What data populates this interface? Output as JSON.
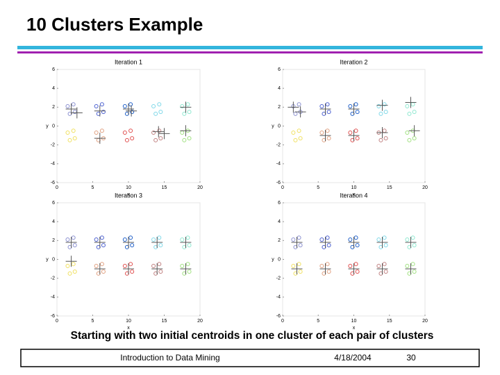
{
  "slide": {
    "title": "10 Clusters Example",
    "caption": "Starting with two initial centroids in one cluster of each pair of clusters",
    "footer": {
      "course": "Introduction to Data Mining",
      "date": "4/18/2004",
      "page": "30"
    }
  },
  "chart_data": [
    {
      "type": "scatter",
      "title": "Iteration 1",
      "x_label": "x",
      "y_label": "y",
      "xlim": [
        0,
        20
      ],
      "ylim": [
        -6,
        6
      ],
      "xticks": [
        0,
        5,
        10,
        15,
        20
      ],
      "yticks": [
        6,
        4,
        2,
        0,
        -2,
        -4,
        -6
      ],
      "series": [
        {
          "color": "#8a8fd0",
          "x": [
            1.5,
            2.3,
            2.5,
            1.8
          ],
          "values": [
            2.1,
            2.3,
            1.5,
            1.3
          ]
        },
        {
          "color": "#4a5fd0",
          "x": [
            5.5,
            6.3,
            6.5,
            5.8
          ],
          "values": [
            2.1,
            2.3,
            1.5,
            1.3
          ]
        },
        {
          "color": "#1f5fc8",
          "x": [
            9.5,
            10.3,
            10.5,
            9.8
          ],
          "values": [
            2.1,
            2.3,
            1.5,
            1.3
          ]
        },
        {
          "color": "#7fd8e8",
          "x": [
            13.5,
            14.3,
            14.5,
            13.8
          ],
          "values": [
            2.1,
            2.3,
            1.5,
            1.3
          ]
        },
        {
          "color": "#8ee8d0",
          "x": [
            17.5,
            18.3,
            18.5,
            17.8
          ],
          "values": [
            2.1,
            2.3,
            1.5,
            1.3
          ]
        },
        {
          "color": "#f0e060",
          "x": [
            1.5,
            2.3,
            2.5,
            1.8
          ],
          "values": [
            -0.7,
            -0.5,
            -1.3,
            -1.5
          ]
        },
        {
          "color": "#e0a080",
          "x": [
            5.5,
            6.3,
            6.5,
            5.8
          ],
          "values": [
            -0.7,
            -0.5,
            -1.3,
            -1.5
          ]
        },
        {
          "color": "#e05050",
          "x": [
            9.5,
            10.3,
            10.5,
            9.8
          ],
          "values": [
            -0.7,
            -0.5,
            -1.3,
            -1.5
          ]
        },
        {
          "color": "#c08080",
          "x": [
            13.5,
            14.3,
            14.5,
            13.8
          ],
          "values": [
            -0.7,
            -0.5,
            -1.3,
            -1.5
          ]
        },
        {
          "color": "#a0e080",
          "x": [
            17.5,
            18.3,
            18.5,
            17.8
          ],
          "values": [
            -0.7,
            -0.5,
            -1.3,
            -1.5
          ]
        },
        {
          "color": "#555555",
          "marker": "plus",
          "x": [
            2,
            2.8,
            6,
            6,
            10,
            10.4,
            14.2,
            15,
            18,
            18
          ],
          "values": [
            1.8,
            1.4,
            1.6,
            -1.3,
            1.8,
            1.6,
            -0.6,
            -0.8,
            2,
            -0.5
          ]
        }
      ]
    },
    {
      "type": "scatter",
      "title": "Iteration 2",
      "x_label": "x",
      "y_label": "y",
      "xlim": [
        0,
        20
      ],
      "ylim": [
        -6,
        6
      ],
      "xticks": [
        0,
        5,
        10,
        15,
        20
      ],
      "yticks": [
        6,
        4,
        2,
        0,
        -2,
        -4,
        -6
      ],
      "series": [
        {
          "color": "#8a8fd0",
          "x": [
            1.5,
            2.3,
            2.5,
            1.8
          ],
          "values": [
            2.1,
            2.3,
            1.5,
            1.3
          ]
        },
        {
          "color": "#4a5fd0",
          "x": [
            5.5,
            6.3,
            6.5,
            5.8
          ],
          "values": [
            2.1,
            2.3,
            1.5,
            1.3
          ]
        },
        {
          "color": "#1f5fc8",
          "x": [
            9.5,
            10.3,
            10.5,
            9.8
          ],
          "values": [
            2.1,
            2.3,
            1.5,
            1.3
          ]
        },
        {
          "color": "#7fd8e8",
          "x": [
            13.5,
            14.3,
            14.5,
            13.8
          ],
          "values": [
            2.1,
            2.3,
            1.5,
            1.3
          ]
        },
        {
          "color": "#8ee8d0",
          "x": [
            17.5,
            18.3,
            18.5,
            17.8
          ],
          "values": [
            2.1,
            2.3,
            1.5,
            1.3
          ]
        },
        {
          "color": "#f0e060",
          "x": [
            1.5,
            2.3,
            2.5,
            1.8
          ],
          "values": [
            -0.7,
            -0.5,
            -1.3,
            -1.5
          ]
        },
        {
          "color": "#e0a080",
          "x": [
            5.5,
            6.3,
            6.5,
            5.8
          ],
          "values": [
            -0.7,
            -0.5,
            -1.3,
            -1.5
          ]
        },
        {
          "color": "#e05050",
          "x": [
            9.5,
            10.3,
            10.5,
            9.8
          ],
          "values": [
            -0.7,
            -0.5,
            -1.3,
            -1.5
          ]
        },
        {
          "color": "#c08080",
          "x": [
            13.5,
            14.3,
            14.5,
            13.8
          ],
          "values": [
            -0.7,
            -0.5,
            -1.3,
            -1.5
          ]
        },
        {
          "color": "#a0e080",
          "x": [
            17.5,
            18.3,
            18.5,
            17.8
          ],
          "values": [
            -0.7,
            -0.5,
            -1.3,
            -1.5
          ]
        },
        {
          "color": "#555555",
          "marker": "plus",
          "x": [
            1.5,
            2.5,
            6,
            6,
            10,
            10,
            14,
            14,
            18,
            18.5
          ],
          "values": [
            2,
            1.5,
            1.8,
            -1,
            1.8,
            -1,
            2.2,
            -0.7,
            2.5,
            -0.5
          ]
        }
      ]
    },
    {
      "type": "scatter",
      "title": "Iteration 3",
      "x_label": "x",
      "y_label": "y",
      "xlim": [
        0,
        20
      ],
      "ylim": [
        -6,
        6
      ],
      "xticks": [
        0,
        5,
        10,
        15,
        20
      ],
      "yticks": [
        6,
        4,
        2,
        0,
        -2,
        -4,
        -6
      ],
      "series": [
        {
          "color": "#8a8fd0",
          "x": [
            1.5,
            2.3,
            2.5,
            1.8
          ],
          "values": [
            2.1,
            2.3,
            1.5,
            1.3
          ]
        },
        {
          "color": "#4a5fd0",
          "x": [
            5.5,
            6.3,
            6.5,
            5.8
          ],
          "values": [
            2.1,
            2.3,
            1.5,
            1.3
          ]
        },
        {
          "color": "#1f5fc8",
          "x": [
            9.5,
            10.3,
            10.5,
            9.8
          ],
          "values": [
            2.1,
            2.3,
            1.5,
            1.3
          ]
        },
        {
          "color": "#7fd8e8",
          "x": [
            13.5,
            14.3,
            14.5,
            13.8
          ],
          "values": [
            2.1,
            2.3,
            1.5,
            1.3
          ]
        },
        {
          "color": "#8ee8d0",
          "x": [
            17.5,
            18.3,
            18.5,
            17.8
          ],
          "values": [
            2.1,
            2.3,
            1.5,
            1.3
          ]
        },
        {
          "color": "#f0e060",
          "x": [
            1.5,
            2.3,
            2.5,
            1.8
          ],
          "values": [
            -0.7,
            -0.5,
            -1.3,
            -1.5
          ]
        },
        {
          "color": "#e0a080",
          "x": [
            5.5,
            6.3,
            6.5,
            5.8
          ],
          "values": [
            -0.7,
            -0.5,
            -1.3,
            -1.5
          ]
        },
        {
          "color": "#e05050",
          "x": [
            9.5,
            10.3,
            10.5,
            9.8
          ],
          "values": [
            -0.7,
            -0.5,
            -1.3,
            -1.5
          ]
        },
        {
          "color": "#c08080",
          "x": [
            13.5,
            14.3,
            14.5,
            13.8
          ],
          "values": [
            -0.7,
            -0.5,
            -1.3,
            -1.5
          ]
        },
        {
          "color": "#a0e080",
          "x": [
            17.5,
            18.3,
            18.5,
            17.8
          ],
          "values": [
            -0.7,
            -0.5,
            -1.3,
            -1.5
          ]
        },
        {
          "color": "#555555",
          "marker": "plus",
          "x": [
            2,
            2,
            6,
            6,
            10,
            10,
            14,
            14,
            18,
            18
          ],
          "values": [
            1.8,
            -0.2,
            1.8,
            -1,
            1.8,
            -1,
            1.8,
            -1,
            1.8,
            -1
          ]
        }
      ]
    },
    {
      "type": "scatter",
      "title": "Iteration 4",
      "x_label": "x",
      "y_label": "y",
      "xlim": [
        0,
        20
      ],
      "ylim": [
        -6,
        6
      ],
      "xticks": [
        0,
        5,
        10,
        15,
        20
      ],
      "yticks": [
        6,
        4,
        2,
        0,
        -2,
        -4,
        -6
      ],
      "series": [
        {
          "color": "#8a8fd0",
          "x": [
            1.5,
            2.3,
            2.5,
            1.8
          ],
          "values": [
            2.1,
            2.3,
            1.5,
            1.3
          ]
        },
        {
          "color": "#4a5fd0",
          "x": [
            5.5,
            6.3,
            6.5,
            5.8
          ],
          "values": [
            2.1,
            2.3,
            1.5,
            1.3
          ]
        },
        {
          "color": "#1f5fc8",
          "x": [
            9.5,
            10.3,
            10.5,
            9.8
          ],
          "values": [
            2.1,
            2.3,
            1.5,
            1.3
          ]
        },
        {
          "color": "#7fd8e8",
          "x": [
            13.5,
            14.3,
            14.5,
            13.8
          ],
          "values": [
            2.1,
            2.3,
            1.5,
            1.3
          ]
        },
        {
          "color": "#8ee8d0",
          "x": [
            17.5,
            18.3,
            18.5,
            17.8
          ],
          "values": [
            2.1,
            2.3,
            1.5,
            1.3
          ]
        },
        {
          "color": "#f0e060",
          "x": [
            1.5,
            2.3,
            2.5,
            1.8
          ],
          "values": [
            -0.7,
            -0.5,
            -1.3,
            -1.5
          ]
        },
        {
          "color": "#e0a080",
          "x": [
            5.5,
            6.3,
            6.5,
            5.8
          ],
          "values": [
            -0.7,
            -0.5,
            -1.3,
            -1.5
          ]
        },
        {
          "color": "#e05050",
          "x": [
            9.5,
            10.3,
            10.5,
            9.8
          ],
          "values": [
            -0.7,
            -0.5,
            -1.3,
            -1.5
          ]
        },
        {
          "color": "#c08080",
          "x": [
            13.5,
            14.3,
            14.5,
            13.8
          ],
          "values": [
            -0.7,
            -0.5,
            -1.3,
            -1.5
          ]
        },
        {
          "color": "#a0e080",
          "x": [
            17.5,
            18.3,
            18.5,
            17.8
          ],
          "values": [
            -0.7,
            -0.5,
            -1.3,
            -1.5
          ]
        },
        {
          "color": "#555555",
          "marker": "plus",
          "x": [
            2,
            2,
            6,
            6,
            10,
            10,
            14,
            14,
            18,
            18
          ],
          "values": [
            1.8,
            -1,
            1.8,
            -1,
            1.8,
            -1,
            1.8,
            -1,
            1.8,
            -1
          ]
        }
      ]
    }
  ]
}
